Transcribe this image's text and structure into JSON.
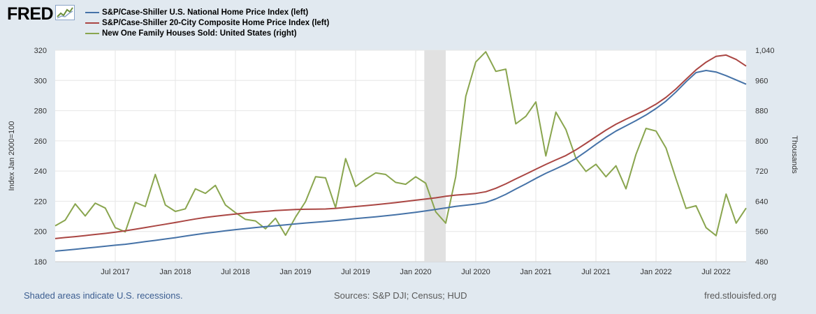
{
  "header": {
    "logo_text": "FRED",
    "logo_icon": "trend-chart-icon"
  },
  "footer": {
    "recession_note": "Shaded areas indicate U.S. recessions.",
    "sources": "Sources: S&P DJI; Census; HUD",
    "site": "fred.stlouisfed.org"
  },
  "colors": {
    "national": "#4572a7",
    "composite": "#aa4643",
    "houses": "#89a54e",
    "recession": "#e1e1e1",
    "grid": "#e6e6e6"
  },
  "chart_data": {
    "type": "line",
    "title": "",
    "left_axis": {
      "label": "Index Jan 2000=100",
      "range": [
        180,
        320
      ],
      "ticks": [
        180,
        200,
        220,
        240,
        260,
        280,
        300,
        320
      ]
    },
    "right_axis": {
      "label": "Thousands",
      "range": [
        480,
        1040
      ],
      "ticks": [
        480,
        560,
        640,
        720,
        800,
        880,
        960,
        1040
      ],
      "tick_labels": [
        "480",
        "560",
        "640",
        "720",
        "800",
        "880",
        "960",
        "1,040"
      ]
    },
    "x_axis": {
      "ticks": [
        "Jul 2017",
        "Jan 2018",
        "Jul 2018",
        "Jan 2019",
        "Jul 2019",
        "Jan 2020",
        "Jul 2020",
        "Jan 2021",
        "Jul 2021",
        "Jan 2022",
        "Jul 2022"
      ],
      "tick_month_index": [
        6,
        12,
        18,
        24,
        30,
        36,
        42,
        48,
        54,
        60,
        66
      ]
    },
    "recession": {
      "start_index": 37,
      "end_index": 39
    },
    "series": [
      {
        "name": "S&P/Case-Shiller U.S. National Home Price Index (left)",
        "axis": "left",
        "color": "#4572a7",
        "values": [
          187,
          187.6,
          188.2,
          188.9,
          189.5,
          190.2,
          190.9,
          191.5,
          192.4,
          193.3,
          194.1,
          195,
          195.9,
          196.9,
          197.9,
          198.8,
          199.6,
          200.4,
          201.2,
          201.9,
          202.6,
          203.2,
          203.8,
          204.4,
          205,
          205.6,
          206.1,
          206.6,
          207.2,
          207.8,
          208.5,
          209.1,
          209.7,
          210.4,
          211.1,
          211.9,
          212.7,
          213.6,
          214.6,
          215.6,
          216.6,
          217.4,
          218.1,
          219.2,
          221.6,
          224.6,
          228.1,
          231.5,
          235.1,
          238.5,
          241.5,
          244.6,
          248.3,
          252.9,
          257.7,
          262.3,
          266.5,
          269.9,
          273.4,
          277.1,
          281.4,
          286.3,
          292.4,
          299.1,
          305.2,
          306.6,
          305.6,
          303.2,
          300.3,
          297.5
        ]
      },
      {
        "name": "S&P/Case-Shiller 20-City Composite Home Price Index (left)",
        "axis": "left",
        "color": "#aa4643",
        "values": [
          195.3,
          196,
          196.6,
          197.3,
          198,
          198.7,
          199.5,
          200.4,
          201.5,
          202.6,
          203.7,
          204.8,
          205.9,
          207.1,
          208.3,
          209.3,
          210.1,
          210.8,
          211.5,
          212.2,
          212.8,
          213.3,
          213.8,
          214.2,
          214.5,
          214.7,
          214.8,
          214.9,
          215.3,
          215.9,
          216.5,
          217.1,
          217.7,
          218.4,
          219.1,
          219.9,
          220.7,
          221.5,
          222.3,
          223.3,
          224.1,
          224.6,
          225.2,
          226.3,
          228.6,
          231.5,
          234.8,
          238,
          241.2,
          244.4,
          247.4,
          250.3,
          254,
          258.3,
          262.7,
          267.1,
          271,
          274.3,
          277.4,
          280.6,
          284.3,
          288.8,
          294.4,
          300.8,
          307,
          312.1,
          316,
          316.8,
          313.9,
          309.5
        ]
      },
      {
        "name": "New One Family Houses Sold: United States (right)",
        "axis": "right",
        "color": "#89a54e",
        "values": [
          575,
          590,
          633,
          601,
          635,
          622,
          570,
          559,
          637,
          626,
          711,
          630,
          613,
          620,
          673,
          661,
          682,
          630,
          610,
          592,
          588,
          567,
          595,
          550,
          598,
          639,
          705,
          702,
          623,
          753,
          679,
          698,
          715,
          711,
          690,
          685,
          705,
          688,
          612,
          582,
          705,
          918,
          1009,
          1036,
          984,
          990,
          845,
          865,
          903,
          760,
          876,
          830,
          754,
          719,
          738,
          705,
          734,
          673,
          764,
          833,
          826,
          781,
          699,
          621,
          628,
          570,
          549,
          659,
          582,
          622
        ]
      }
    ]
  }
}
